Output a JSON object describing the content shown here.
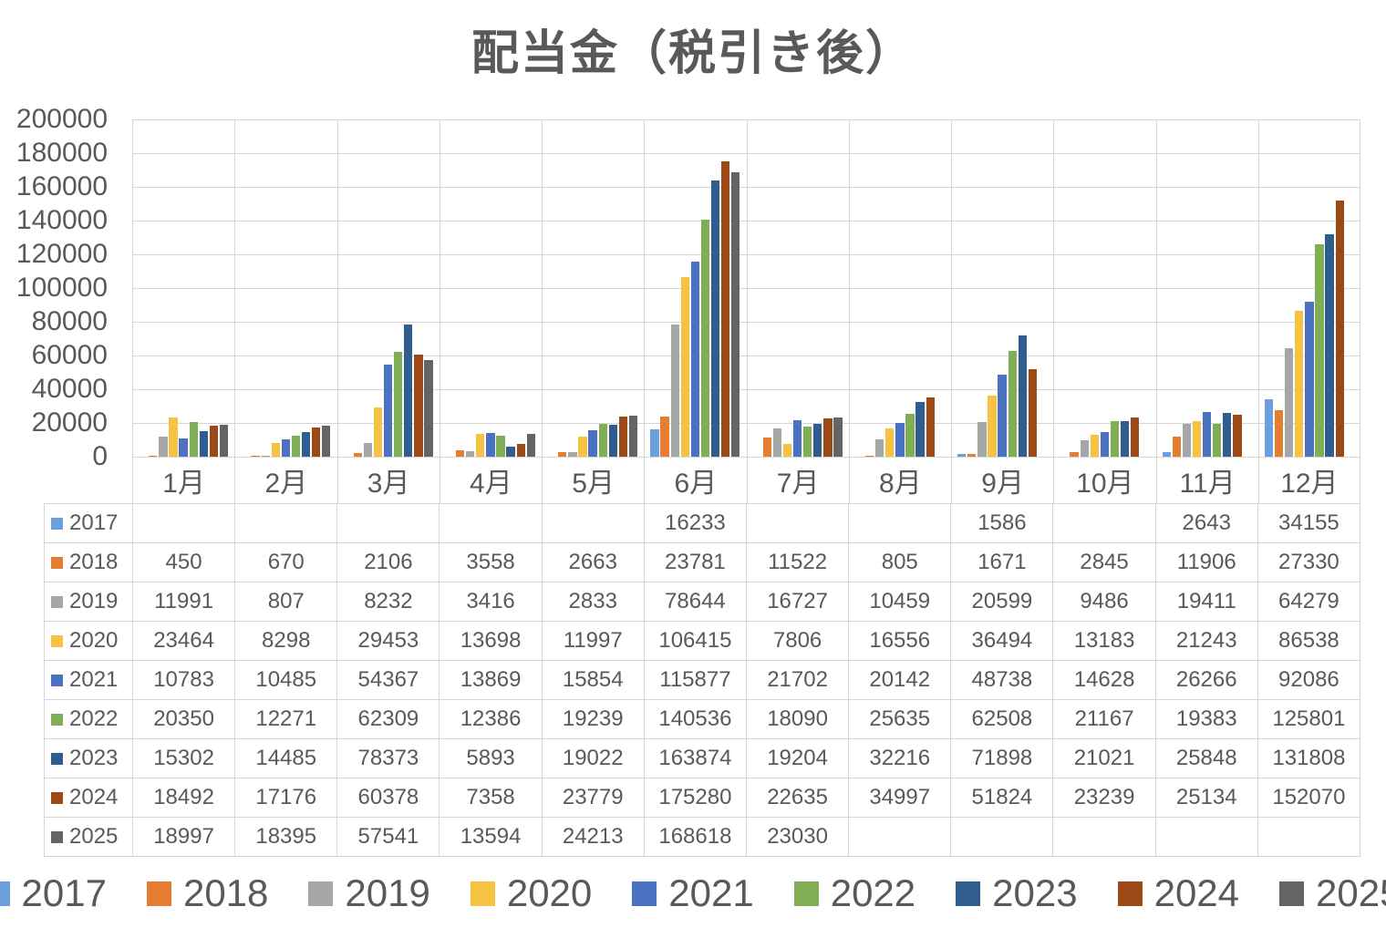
{
  "chart_data": {
    "type": "bar",
    "title": "配当金（税引き後）",
    "categories": [
      "1月",
      "2月",
      "3月",
      "4月",
      "5月",
      "6月",
      "7月",
      "8月",
      "9月",
      "10月",
      "11月",
      "12月"
    ],
    "ylim": [
      0,
      200000
    ],
    "ytick_step": 20000,
    "ytick_labels": [
      "200000",
      "180000",
      "160000",
      "140000",
      "120000",
      "100000",
      "80000",
      "60000",
      "40000",
      "20000",
      "0"
    ],
    "grid": true,
    "legend_position": "bottom",
    "data_table": true,
    "series": [
      {
        "name": "2017",
        "color": "#6CA0DC",
        "values": [
          null,
          null,
          null,
          null,
          null,
          16233,
          null,
          null,
          1586,
          null,
          2643,
          34155
        ]
      },
      {
        "name": "2018",
        "color": "#E57D33",
        "values": [
          450,
          670,
          2106,
          3558,
          2663,
          23781,
          11522,
          805,
          1671,
          2845,
          11906,
          27330
        ]
      },
      {
        "name": "2019",
        "color": "#A6A6A6",
        "values": [
          11991,
          807,
          8232,
          3416,
          2833,
          78644,
          16727,
          10459,
          20599,
          9486,
          19411,
          64279
        ]
      },
      {
        "name": "2020",
        "color": "#F5C242",
        "values": [
          23464,
          8298,
          29453,
          13698,
          11997,
          106415,
          7806,
          16556,
          36494,
          13183,
          21243,
          86538
        ]
      },
      {
        "name": "2021",
        "color": "#4A72C0",
        "values": [
          10783,
          10485,
          54367,
          13869,
          15854,
          115877,
          21702,
          20142,
          48738,
          14628,
          26266,
          92086
        ]
      },
      {
        "name": "2022",
        "color": "#7FAE54",
        "values": [
          20350,
          12271,
          62309,
          12386,
          19239,
          140536,
          18090,
          25635,
          62508,
          21167,
          19383,
          125801
        ]
      },
      {
        "name": "2023",
        "color": "#2E5D8E",
        "values": [
          15302,
          14485,
          78373,
          5893,
          19022,
          163874,
          19204,
          32216,
          71898,
          21021,
          25848,
          131808
        ]
      },
      {
        "name": "2024",
        "color": "#9B4A17",
        "values": [
          18492,
          17176,
          60378,
          7358,
          23779,
          175280,
          22635,
          34997,
          51824,
          23239,
          25134,
          152070
        ]
      },
      {
        "name": "2025",
        "color": "#646464",
        "values": [
          18997,
          18395,
          57541,
          13594,
          24213,
          168618,
          23030,
          null,
          null,
          null,
          null,
          null
        ]
      }
    ]
  }
}
